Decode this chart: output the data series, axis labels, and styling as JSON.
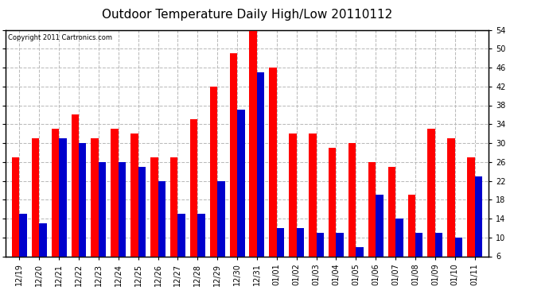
{
  "title": "Outdoor Temperature Daily High/Low 20110112",
  "copyright": "Copyright 2011 Cartronics.com",
  "dates": [
    "12/19",
    "12/20",
    "12/21",
    "12/22",
    "12/23",
    "12/24",
    "12/25",
    "12/26",
    "12/27",
    "12/28",
    "12/29",
    "12/30",
    "12/31",
    "01/01",
    "01/02",
    "01/03",
    "01/04",
    "01/05",
    "01/06",
    "01/07",
    "01/08",
    "01/09",
    "01/10",
    "01/11"
  ],
  "highs": [
    27,
    31,
    33,
    36,
    31,
    33,
    32,
    27,
    27,
    35,
    42,
    49,
    54,
    46,
    32,
    32,
    29,
    30,
    26,
    25,
    19,
    33,
    31,
    27
  ],
  "lows": [
    15,
    13,
    31,
    30,
    26,
    26,
    25,
    22,
    15,
    15,
    22,
    37,
    45,
    12,
    12,
    11,
    11,
    8,
    19,
    14,
    11,
    11,
    10,
    23
  ],
  "high_color": "#ff0000",
  "low_color": "#0000cc",
  "bg_color": "#ffffff",
  "plot_bg_color": "#ffffff",
  "grid_color": "#bbbbbb",
  "ylim_min": 6.0,
  "ylim_max": 54.0,
  "yticks": [
    6.0,
    10.0,
    14.0,
    18.0,
    22.0,
    26.0,
    30.0,
    34.0,
    38.0,
    42.0,
    46.0,
    50.0,
    54.0
  ],
  "bar_width": 0.38,
  "title_fontsize": 11,
  "tick_fontsize": 7,
  "copyright_fontsize": 6
}
